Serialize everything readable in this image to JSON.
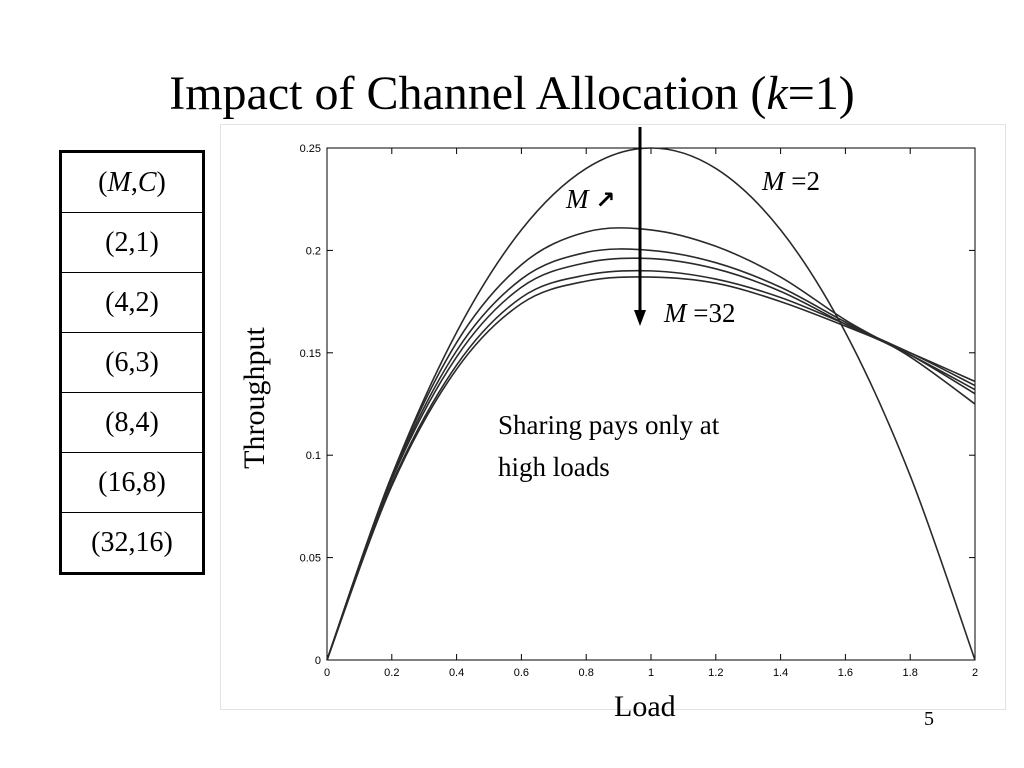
{
  "slide": {
    "title_prefix": "Impact of Channel Allocation (",
    "title_var": "k",
    "title_suffix": "=1)",
    "page_number": "5"
  },
  "legend_table": {
    "header_M": "M",
    "header_C": "C",
    "rows": [
      "(2,1)",
      "(4,2)",
      "(6,3)",
      "(8,4)",
      "(16,8)",
      "(32,16)"
    ]
  },
  "annotations": {
    "m2_var": "M",
    "m2_value": " =2",
    "m32_var": "M",
    "m32_value": " =32",
    "m_increase_var": "M",
    "m_increase_arrow": "↗",
    "sharing_line1": "Sharing pays only at",
    "sharing_line2": "high loads"
  },
  "colors": {
    "curve": "#2a2a2a",
    "axis": "#000000",
    "arrow": "#000000"
  },
  "chart_data": {
    "type": "line",
    "xlabel": "Load",
    "ylabel": "Throughput",
    "xlim": [
      0,
      2
    ],
    "ylim": [
      0,
      0.25
    ],
    "xticks": [
      "0",
      "0.2",
      "0.4",
      "0.6",
      "0.8",
      "1",
      "1.2",
      "1.4",
      "1.6",
      "1.8",
      "2"
    ],
    "yticks": [
      "0",
      "0.05",
      "0.1",
      "0.15",
      "0.2",
      "0.25"
    ],
    "grid": false,
    "x": [
      0,
      0.2,
      0.4,
      0.6,
      0.8,
      1.0,
      1.2,
      1.4,
      1.6,
      1.8,
      2.0
    ],
    "series": [
      {
        "name": "(2,1)",
        "values": [
          0,
          0.09,
          0.16,
          0.21,
          0.24,
          0.25,
          0.24,
          0.21,
          0.16,
          0.09,
          0
        ]
      },
      {
        "name": "(4,2)",
        "values": [
          0,
          0.09,
          0.155,
          0.193,
          0.209,
          0.21,
          0.202,
          0.187,
          0.166,
          0.148,
          0.125
        ]
      },
      {
        "name": "(6,3)",
        "values": [
          0,
          0.089,
          0.151,
          0.186,
          0.199,
          0.2,
          0.194,
          0.182,
          0.165,
          0.149,
          0.13
        ]
      },
      {
        "name": "(8,4)",
        "values": [
          0,
          0.088,
          0.148,
          0.182,
          0.194,
          0.196,
          0.191,
          0.18,
          0.164,
          0.149,
          0.132
        ]
      },
      {
        "name": "(16,8)",
        "values": [
          0,
          0.086,
          0.144,
          0.177,
          0.188,
          0.19,
          0.186,
          0.177,
          0.164,
          0.15,
          0.134
        ]
      },
      {
        "name": "(32,16)",
        "values": [
          0,
          0.085,
          0.142,
          0.174,
          0.185,
          0.187,
          0.184,
          0.175,
          0.163,
          0.15,
          0.136
        ]
      }
    ]
  }
}
